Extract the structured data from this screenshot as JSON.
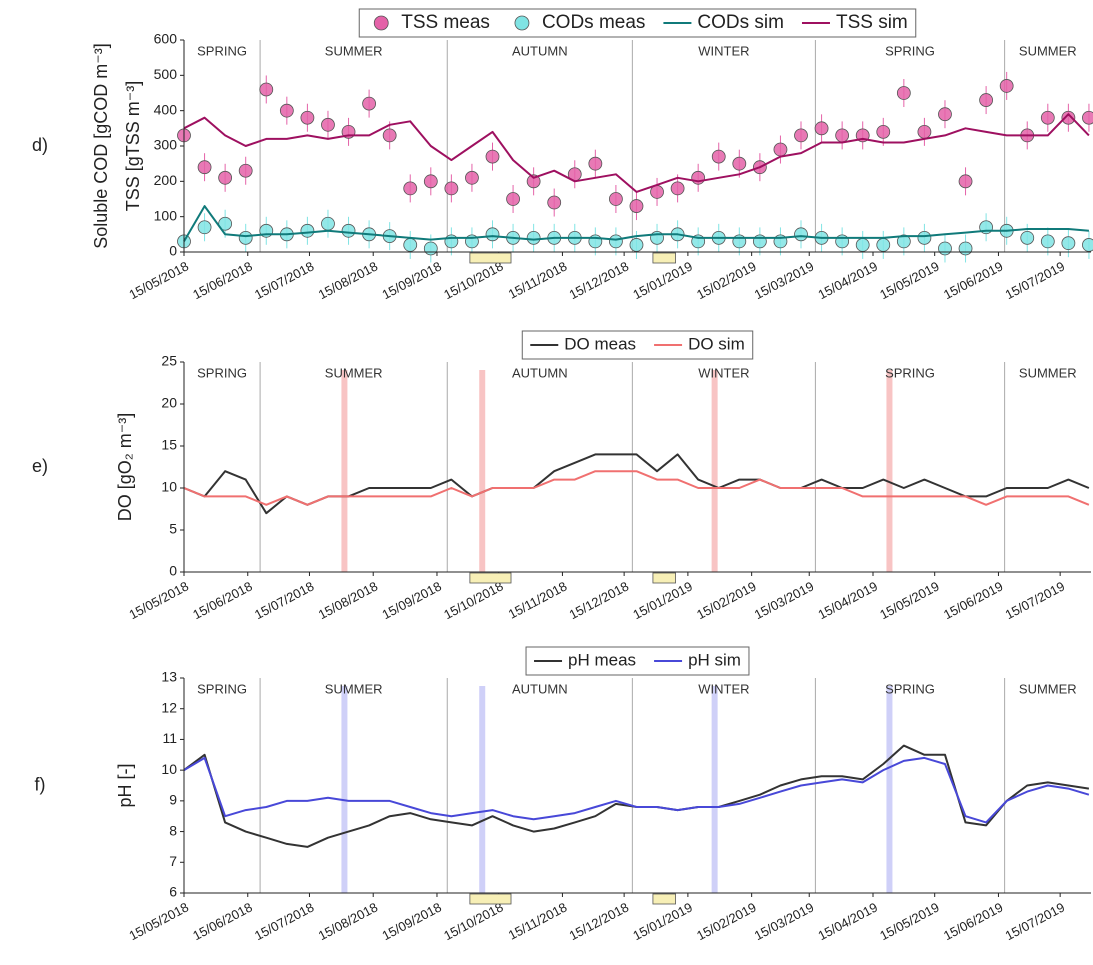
{
  "chart_data": [
    {
      "type": "line",
      "panel": "d)",
      "ylabel": [
        "Soluble COD [gCOD m⁻³]",
        "TSS [gTSS m⁻³]"
      ],
      "xlim": [
        "15/05/2018",
        "30/07/2019"
      ],
      "ylim": [
        0,
        600
      ],
      "yticks": [
        0,
        100,
        200,
        300,
        400,
        500,
        600
      ],
      "xticks": [
        "15/05/2018",
        "15/06/2018",
        "15/07/2018",
        "15/08/2018",
        "15/09/2018",
        "15/10/2018",
        "15/11/2018",
        "15/12/2018",
        "15/01/2019",
        "15/02/2019",
        "15/03/2019",
        "15/04/2019",
        "15/05/2019",
        "15/06/2019",
        "15/07/2019"
      ],
      "seasons": [
        "SPRING",
        "SUMMER",
        "AUTUMN",
        "WINTER",
        "SPRING",
        "SUMMER"
      ],
      "season_bounds": [
        "21/06/2018",
        "20/09/2018",
        "19/12/2018",
        "18/03/2019",
        "18/06/2019"
      ],
      "highlight_periods": [
        [
          "01/10/2018",
          "21/10/2018"
        ],
        [
          "29/12/2018",
          "09/01/2019"
        ]
      ],
      "marker_dates": [],
      "marker_color": "#f4a6c6",
      "x": [
        "15/05/2018",
        "25/05/2018",
        "04/06/2018",
        "14/06/2018",
        "24/06/2018",
        "04/07/2018",
        "14/07/2018",
        "24/07/2018",
        "03/08/2018",
        "13/08/2018",
        "23/08/2018",
        "02/09/2018",
        "12/09/2018",
        "22/09/2018",
        "02/10/2018",
        "12/10/2018",
        "22/10/2018",
        "01/11/2018",
        "11/11/2018",
        "21/11/2018",
        "01/12/2018",
        "11/12/2018",
        "21/12/2018",
        "31/12/2018",
        "10/01/2019",
        "20/01/2019",
        "30/01/2019",
        "09/02/2019",
        "19/02/2019",
        "01/03/2019",
        "11/03/2019",
        "21/03/2019",
        "31/03/2019",
        "10/04/2019",
        "20/04/2019",
        "30/04/2019",
        "10/05/2019",
        "20/05/2019",
        "30/05/2019",
        "09/06/2019",
        "19/06/2019",
        "29/06/2019",
        "09/07/2019",
        "19/07/2019",
        "29/07/2019"
      ],
      "series": [
        {
          "name": "TSS meas",
          "style": "markers",
          "color": "#e462a8",
          "values": [
            330,
            240,
            210,
            230,
            460,
            400,
            380,
            360,
            340,
            420,
            330,
            180,
            200,
            180,
            210,
            270,
            150,
            200,
            140,
            220,
            250,
            150,
            130,
            170,
            180,
            210,
            270,
            250,
            240,
            290,
            330,
            350,
            330,
            330,
            340,
            450,
            340,
            390,
            200,
            430,
            470,
            330,
            380,
            380,
            380
          ]
        },
        {
          "name": "CODs meas",
          "style": "markers",
          "color": "#80e4e4",
          "values": [
            30,
            70,
            80,
            40,
            60,
            50,
            60,
            80,
            60,
            50,
            45,
            20,
            10,
            30,
            30,
            50,
            40,
            40,
            40,
            40,
            30,
            30,
            20,
            40,
            50,
            30,
            40,
            30,
            30,
            30,
            50,
            40,
            30,
            20,
            20,
            30,
            40,
            10,
            10,
            70,
            60,
            40,
            30,
            25,
            20
          ]
        },
        {
          "name": "CODs sim",
          "style": "line",
          "color": "#107a7a",
          "values": [
            30,
            130,
            50,
            45,
            50,
            50,
            55,
            60,
            55,
            50,
            45,
            40,
            35,
            40,
            40,
            45,
            40,
            35,
            40,
            40,
            40,
            35,
            45,
            50,
            50,
            40,
            40,
            40,
            40,
            40,
            45,
            40,
            40,
            40,
            40,
            45,
            45,
            50,
            55,
            60,
            60,
            65,
            65,
            65,
            60
          ]
        },
        {
          "name": "TSS sim",
          "style": "line",
          "color": "#9e1060",
          "values": [
            350,
            380,
            330,
            300,
            320,
            320,
            330,
            320,
            330,
            330,
            360,
            370,
            300,
            260,
            300,
            340,
            260,
            210,
            230,
            200,
            210,
            220,
            170,
            190,
            210,
            200,
            210,
            220,
            240,
            270,
            280,
            310,
            310,
            320,
            310,
            310,
            320,
            330,
            350,
            340,
            330,
            330,
            330,
            390,
            330
          ]
        }
      ]
    },
    {
      "type": "line",
      "panel": "e)",
      "ylabel": [
        "DO [gO₂ m⁻³]"
      ],
      "xlim": [
        "15/05/2018",
        "30/07/2019"
      ],
      "ylim": [
        0,
        25
      ],
      "yticks": [
        0,
        5,
        10,
        15,
        20,
        25
      ],
      "xticks": [
        "15/05/2018",
        "15/06/2018",
        "15/07/2018",
        "15/08/2018",
        "15/09/2018",
        "15/10/2018",
        "15/11/2018",
        "15/12/2018",
        "15/01/2019",
        "15/02/2019",
        "15/03/2019",
        "15/04/2019",
        "15/05/2019",
        "15/06/2019",
        "15/07/2019"
      ],
      "seasons": [
        "SPRING",
        "SUMMER",
        "AUTUMN",
        "WINTER",
        "SPRING",
        "SUMMER"
      ],
      "season_bounds": [
        "21/06/2018",
        "20/09/2018",
        "19/12/2018",
        "18/03/2019",
        "18/06/2019"
      ],
      "highlight_periods": [
        [
          "01/10/2018",
          "21/10/2018"
        ],
        [
          "29/12/2018",
          "09/01/2019"
        ]
      ],
      "marker_dates": [
        "01/08/2018",
        "07/10/2018",
        "28/01/2019",
        "23/04/2019"
      ],
      "marker_color": "#f8c4c4",
      "x": [
        "15/05/2018",
        "25/05/2018",
        "04/06/2018",
        "14/06/2018",
        "24/06/2018",
        "04/07/2018",
        "14/07/2018",
        "24/07/2018",
        "03/08/2018",
        "13/08/2018",
        "23/08/2018",
        "02/09/2018",
        "12/09/2018",
        "22/09/2018",
        "02/10/2018",
        "12/10/2018",
        "22/10/2018",
        "01/11/2018",
        "11/11/2018",
        "21/11/2018",
        "01/12/2018",
        "11/12/2018",
        "21/12/2018",
        "31/12/2018",
        "10/01/2019",
        "20/01/2019",
        "30/01/2019",
        "09/02/2019",
        "19/02/2019",
        "01/03/2019",
        "11/03/2019",
        "21/03/2019",
        "31/03/2019",
        "10/04/2019",
        "20/04/2019",
        "30/04/2019",
        "10/05/2019",
        "20/05/2019",
        "30/05/2019",
        "09/06/2019",
        "19/06/2019",
        "29/06/2019",
        "09/07/2019",
        "19/07/2019",
        "29/07/2019"
      ],
      "series": [
        {
          "name": "DO meas",
          "style": "line",
          "color": "#333333",
          "values": [
            10,
            9,
            12,
            11,
            7,
            9,
            8,
            9,
            9,
            10,
            10,
            10,
            10,
            11,
            9,
            10,
            10,
            10,
            12,
            13,
            14,
            14,
            14,
            12,
            14,
            11,
            10,
            11,
            11,
            10,
            10,
            11,
            10,
            10,
            11,
            10,
            11,
            10,
            9,
            9,
            10,
            10,
            10,
            11,
            10
          ]
        },
        {
          "name": "DO sim",
          "style": "line",
          "color": "#f07070",
          "values": [
            10,
            9,
            9,
            9,
            8,
            9,
            8,
            9,
            9,
            9,
            9,
            9,
            9,
            10,
            9,
            10,
            10,
            10,
            11,
            11,
            12,
            12,
            12,
            11,
            11,
            10,
            10,
            10,
            11,
            10,
            10,
            10,
            10,
            9,
            9,
            9,
            9,
            9,
            9,
            8,
            9,
            9,
            9,
            9,
            8
          ]
        }
      ]
    },
    {
      "type": "line",
      "panel": "f)",
      "ylabel": [
        "pH [-]"
      ],
      "xlim": [
        "15/05/2018",
        "30/07/2019"
      ],
      "ylim": [
        6,
        13
      ],
      "yticks": [
        6,
        7,
        8,
        9,
        10,
        11,
        12,
        13
      ],
      "xticks": [
        "15/05/2018",
        "15/06/2018",
        "15/07/2018",
        "15/08/2018",
        "15/09/2018",
        "15/10/2018",
        "15/11/2018",
        "15/12/2018",
        "15/01/2019",
        "15/02/2019",
        "15/03/2019",
        "15/04/2019",
        "15/05/2019",
        "15/06/2019",
        "15/07/2019"
      ],
      "seasons": [
        "SPRING",
        "SUMMER",
        "AUTUMN",
        "WINTER",
        "SPRING",
        "SUMMER"
      ],
      "season_bounds": [
        "21/06/2018",
        "20/09/2018",
        "19/12/2018",
        "18/03/2019",
        "18/06/2019"
      ],
      "highlight_periods": [
        [
          "01/10/2018",
          "21/10/2018"
        ],
        [
          "29/12/2018",
          "09/01/2019"
        ]
      ],
      "marker_dates": [
        "01/08/2018",
        "07/10/2018",
        "28/01/2019",
        "23/04/2019"
      ],
      "marker_color": "#cfd0f8",
      "x": [
        "15/05/2018",
        "25/05/2018",
        "04/06/2018",
        "14/06/2018",
        "24/06/2018",
        "04/07/2018",
        "14/07/2018",
        "24/07/2018",
        "03/08/2018",
        "13/08/2018",
        "23/08/2018",
        "02/09/2018",
        "12/09/2018",
        "22/09/2018",
        "02/10/2018",
        "12/10/2018",
        "22/10/2018",
        "01/11/2018",
        "11/11/2018",
        "21/11/2018",
        "01/12/2018",
        "11/12/2018",
        "21/12/2018",
        "31/12/2018",
        "10/01/2019",
        "20/01/2019",
        "30/01/2019",
        "09/02/2019",
        "19/02/2019",
        "01/03/2019",
        "11/03/2019",
        "21/03/2019",
        "31/03/2019",
        "10/04/2019",
        "20/04/2019",
        "30/04/2019",
        "10/05/2019",
        "20/05/2019",
        "30/05/2019",
        "09/06/2019",
        "19/06/2019",
        "29/06/2019",
        "09/07/2019",
        "19/07/2019",
        "29/07/2019"
      ],
      "series": [
        {
          "name": "pH meas",
          "style": "line",
          "color": "#333333",
          "values": [
            10,
            10.5,
            8.3,
            8,
            7.8,
            7.6,
            7.5,
            7.8,
            8,
            8.2,
            8.5,
            8.6,
            8.4,
            8.3,
            8.2,
            8.5,
            8.2,
            8.0,
            8.1,
            8.3,
            8.5,
            8.9,
            8.8,
            8.8,
            8.7,
            8.8,
            8.8,
            9.0,
            9.2,
            9.5,
            9.7,
            9.8,
            9.8,
            9.7,
            10.2,
            10.8,
            10.5,
            10.5,
            8.3,
            8.2,
            9.0,
            9.5,
            9.6,
            9.5,
            9.4
          ]
        },
        {
          "name": "pH sim",
          "style": "line",
          "color": "#4848d8",
          "values": [
            10,
            10.4,
            8.5,
            8.7,
            8.8,
            9.0,
            9.0,
            9.1,
            9.0,
            9.0,
            9.0,
            8.8,
            8.6,
            8.5,
            8.6,
            8.7,
            8.5,
            8.4,
            8.5,
            8.6,
            8.8,
            9.0,
            8.8,
            8.8,
            8.7,
            8.8,
            8.8,
            8.9,
            9.1,
            9.3,
            9.5,
            9.6,
            9.7,
            9.6,
            10.0,
            10.3,
            10.4,
            10.2,
            8.5,
            8.3,
            9.0,
            9.3,
            9.5,
            9.4,
            9.2
          ]
        }
      ]
    }
  ]
}
